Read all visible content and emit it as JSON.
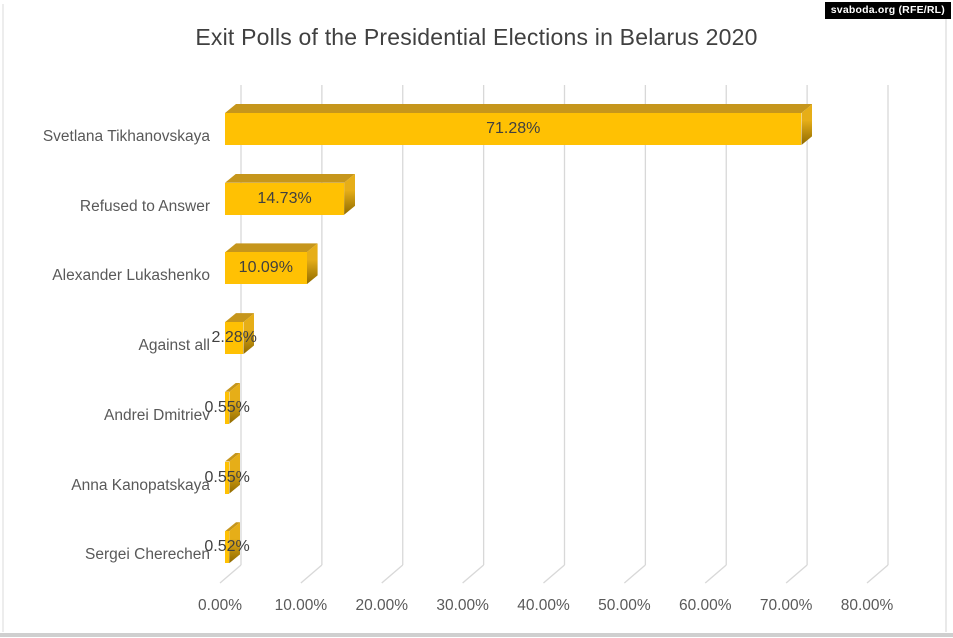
{
  "title": {
    "text": "Exit Polls of the Presidential Elections in Belarus 2020"
  },
  "watermark": {
    "text": "svaboda.org (RFE/RL)",
    "bg": "#000000",
    "fg": "#ffffff"
  },
  "chart_data": {
    "type": "bar",
    "orientation": "horizontal",
    "style": "3d",
    "title": "Exit Polls of the Presidential Elections in Belarus 2020",
    "categories": [
      "Svetlana Tikhanovskaya",
      "Refused to Answer",
      "Alexander Lukashenko",
      "Against all",
      "Andrei Dmitriev",
      "Anna Kanopatskaya",
      "Sergei Cherechen"
    ],
    "values": [
      71.28,
      14.73,
      10.09,
      2.28,
      0.55,
      0.55,
      0.52
    ],
    "value_labels": [
      "71.28%",
      "14.73%",
      "10.09%",
      "2.28%",
      "0.55%",
      "0.55%",
      "0.52%"
    ],
    "xlabel": "",
    "ylabel": "",
    "xlim": [
      0,
      80
    ],
    "x_ticks": [
      0,
      10,
      20,
      30,
      40,
      50,
      60,
      70,
      80
    ],
    "x_tick_labels": [
      "0.00%",
      "10.00%",
      "20.00%",
      "30.00%",
      "40.00%",
      "50.00%",
      "60.00%",
      "70.00%",
      "80.00%"
    ],
    "grid": true,
    "legend": false,
    "data_labels_position": "center",
    "colors": {
      "bar_face": "#FFC103",
      "bar_top": "#C6961C",
      "bar_side_light": "#E6AE18",
      "bar_side_dark": "#8F6A00",
      "gridline": "#D8D8D8",
      "title_text": "#404040",
      "axis_text": "#595959",
      "data_label_text": "#404040"
    }
  }
}
